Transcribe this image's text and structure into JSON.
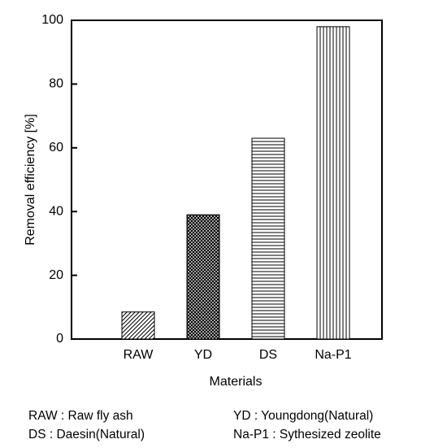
{
  "chart_data": {
    "type": "bar",
    "y_label": "Removal efficiency [%]",
    "x_label": "Materials",
    "categories": [
      "RAW",
      "YD",
      "DS",
      "Na-P1"
    ],
    "values": [
      8.5,
      39,
      63,
      98
    ],
    "patterns": [
      "diagonal",
      "crosshatch",
      "horizontal",
      "vertical"
    ],
    "color": "#000000",
    "ylim": [
      0,
      100
    ],
    "yticks": [
      0,
      20,
      40,
      60,
      80,
      100
    ],
    "annotations": [
      "RAW : Raw fly ash",
      "YD : Youngdong(Natural)",
      "DS : Daesin(Natural)",
      "Na-P1 : Sythesized zeolite"
    ]
  }
}
